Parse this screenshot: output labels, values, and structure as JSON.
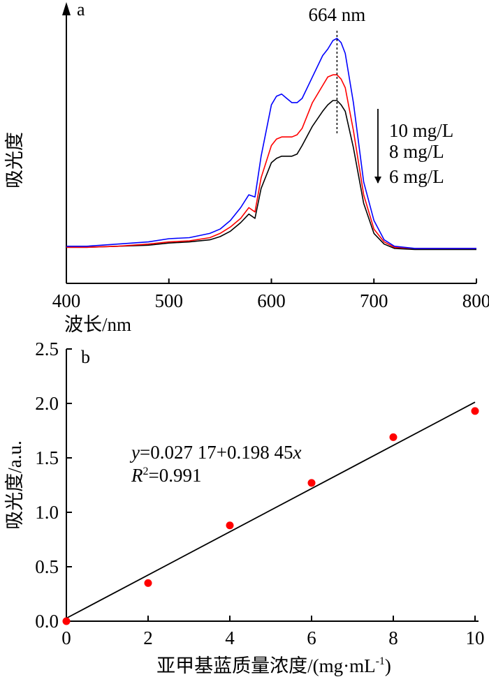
{
  "chart_data": [
    {
      "panel": "a",
      "type": "line",
      "xlabel": "波长/nm",
      "ylabel": "吸光度",
      "xlim": [
        400,
        800
      ],
      "xticks": [
        "400",
        "500",
        "600",
        "700",
        "800"
      ],
      "peak_label": "664 nm",
      "peak_x": 664,
      "legend": [
        "10 mg/L",
        "8 mg/L",
        "6 mg/L"
      ],
      "legend_placement": "right of peak, arrow pointing downward",
      "grid": false,
      "y_units": "relative (no ticks shown)",
      "x": [
        395,
        420,
        450,
        480,
        500,
        520,
        540,
        550,
        560,
        570,
        578,
        584,
        590,
        600,
        605,
        610,
        615,
        620,
        625,
        630,
        640,
        650,
        655,
        660,
        664,
        668,
        672,
        680,
        690,
        700,
        710,
        720,
        740,
        760,
        800
      ],
      "series": [
        {
          "name": "10 mg/L",
          "color": "#0000ff",
          "y": [
            0.03,
            0.03,
            0.04,
            0.05,
            0.065,
            0.07,
            0.09,
            0.11,
            0.15,
            0.21,
            0.27,
            0.26,
            0.45,
            0.69,
            0.73,
            0.74,
            0.72,
            0.7,
            0.7,
            0.72,
            0.82,
            0.92,
            0.95,
            0.99,
            1.0,
            0.98,
            0.93,
            0.7,
            0.33,
            0.15,
            0.06,
            0.03,
            0.02,
            0.02,
            0.02
          ]
        },
        {
          "name": "8 mg/L",
          "color": "#ff0000",
          "y": [
            0.025,
            0.025,
            0.03,
            0.04,
            0.05,
            0.055,
            0.07,
            0.09,
            0.12,
            0.16,
            0.21,
            0.19,
            0.35,
            0.5,
            0.53,
            0.54,
            0.54,
            0.54,
            0.55,
            0.58,
            0.7,
            0.78,
            0.82,
            0.83,
            0.83,
            0.81,
            0.77,
            0.57,
            0.27,
            0.11,
            0.05,
            0.025,
            0.02,
            0.02,
            0.02
          ]
        },
        {
          "name": "6 mg/L",
          "color": "#000000",
          "y": [
            0.025,
            0.025,
            0.03,
            0.035,
            0.045,
            0.05,
            0.06,
            0.075,
            0.1,
            0.14,
            0.18,
            0.16,
            0.3,
            0.42,
            0.44,
            0.45,
            0.45,
            0.45,
            0.46,
            0.5,
            0.59,
            0.66,
            0.69,
            0.71,
            0.71,
            0.69,
            0.66,
            0.49,
            0.23,
            0.09,
            0.04,
            0.02,
            0.015,
            0.015,
            0.015
          ]
        }
      ]
    },
    {
      "panel": "b",
      "type": "scatter",
      "xlabel": "亚甲基蓝质量浓度/(mg·mL",
      "xlabel_sup": "-1",
      "xlabel_close": ")",
      "ylabel": "吸光度/a.u.",
      "xlim": [
        0,
        10
      ],
      "ylim": [
        0,
        2.5
      ],
      "xticks": [
        "0",
        "2",
        "4",
        "6",
        "8",
        "10"
      ],
      "yticks": [
        "0.0",
        "0.5",
        "1.0",
        "1.5",
        "2.0",
        "2.5"
      ],
      "grid": false,
      "points": {
        "color": "#ff0000",
        "x": [
          0,
          2,
          4,
          6,
          8,
          10
        ],
        "y": [
          0.0,
          0.35,
          0.88,
          1.27,
          1.69,
          1.93
        ]
      },
      "fit": {
        "intercept": 0.02717,
        "slope": 0.19845,
        "color": "#000000"
      },
      "equation": {
        "y_var": "y",
        "body": "=0.027 17+0.198 45",
        "x_var": "x",
        "r_var": "R",
        "r_sup": "2",
        "r_value": "=0.991"
      }
    }
  ]
}
